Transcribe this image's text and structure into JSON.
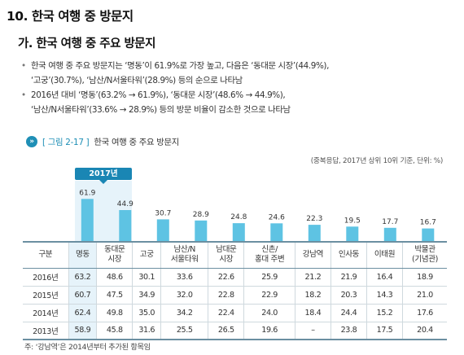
{
  "heading": "10. 한국 여행 중 방문지",
  "subheading": "가. 한국 여행 중 주요 방문지",
  "bullets": [
    {
      "line1": "한국 여행 중 주요 방문지는 ‘명동’이 61.9%로 가장 높고, 다음은 ‘동대문 시장’(44.9%),",
      "line2": "‘고궁’(30.7%), ‘남산/N서울타워’(28.9%) 등의 순으로 나타남"
    },
    {
      "line1": "2016년 대비 ‘명동’(63.2% → 61.9%), ‘동대문 시장’(48.6% → 44.9%),",
      "line2": "‘남산/N서울타워’(33.6% → 28.9%) 등의 방문 비율이 감소한 것으로 나타남"
    }
  ],
  "figure": {
    "icon": "»",
    "label": "[ 그림 2-17 ]",
    "title": "한국 여행 중 주요 방문지",
    "note": "(중복응답, 2017년 상위 10위 기준, 단위: %)",
    "year_tag": "2017년"
  },
  "colors": {
    "bar": "#5ec3e3",
    "accent": "#1a86b4",
    "highlight_bg": "#e6f3fa"
  },
  "chart_data": {
    "type": "bar",
    "categories": [
      "명동",
      "동대문 시장",
      "고궁",
      "남산/N 서울타워",
      "남대문 시장",
      "신촌/ 홍대 주변",
      "강남역",
      "인사동",
      "이태원",
      "박물관 (기념관)"
    ],
    "values": [
      61.9,
      44.9,
      30.7,
      28.9,
      24.8,
      24.6,
      22.3,
      19.5,
      17.7,
      16.7
    ],
    "value_labels": [
      "61.9",
      "44.9",
      "30.7",
      "28.9",
      "24.8",
      "24.6",
      "22.3",
      "19.5",
      "17.7",
      "16.7"
    ],
    "ylim": [
      0,
      70
    ]
  },
  "table": {
    "corner": "구분",
    "headers": [
      [
        "명동"
      ],
      [
        "동대문",
        "시장"
      ],
      [
        "고궁"
      ],
      [
        "남산/N",
        "서울타워"
      ],
      [
        "남대문",
        "시장"
      ],
      [
        "신촌/",
        "홍대 주변"
      ],
      [
        "강남역"
      ],
      [
        "인사동"
      ],
      [
        "이태원"
      ],
      [
        "박물관",
        "(기념관)"
      ]
    ],
    "rows": [
      {
        "year": "2016년",
        "values": [
          "63.2",
          "48.6",
          "30.1",
          "33.6",
          "22.6",
          "25.9",
          "21.2",
          "21.9",
          "16.4",
          "18.9"
        ]
      },
      {
        "year": "2015년",
        "values": [
          "60.7",
          "47.5",
          "34.9",
          "32.0",
          "22.8",
          "22.9",
          "18.2",
          "20.3",
          "14.3",
          "21.0"
        ]
      },
      {
        "year": "2014년",
        "values": [
          "62.4",
          "49.8",
          "35.0",
          "34.2",
          "22.4",
          "24.0",
          "18.4",
          "24.4",
          "15.2",
          "17.6"
        ]
      },
      {
        "year": "2013년",
        "values": [
          "58.9",
          "45.8",
          "31.6",
          "25.5",
          "26.5",
          "19.6",
          "–",
          "23.8",
          "17.5",
          "20.4"
        ]
      }
    ]
  },
  "footnote": "주: ‘강남역’은 2014년부터 추가된 항목임"
}
